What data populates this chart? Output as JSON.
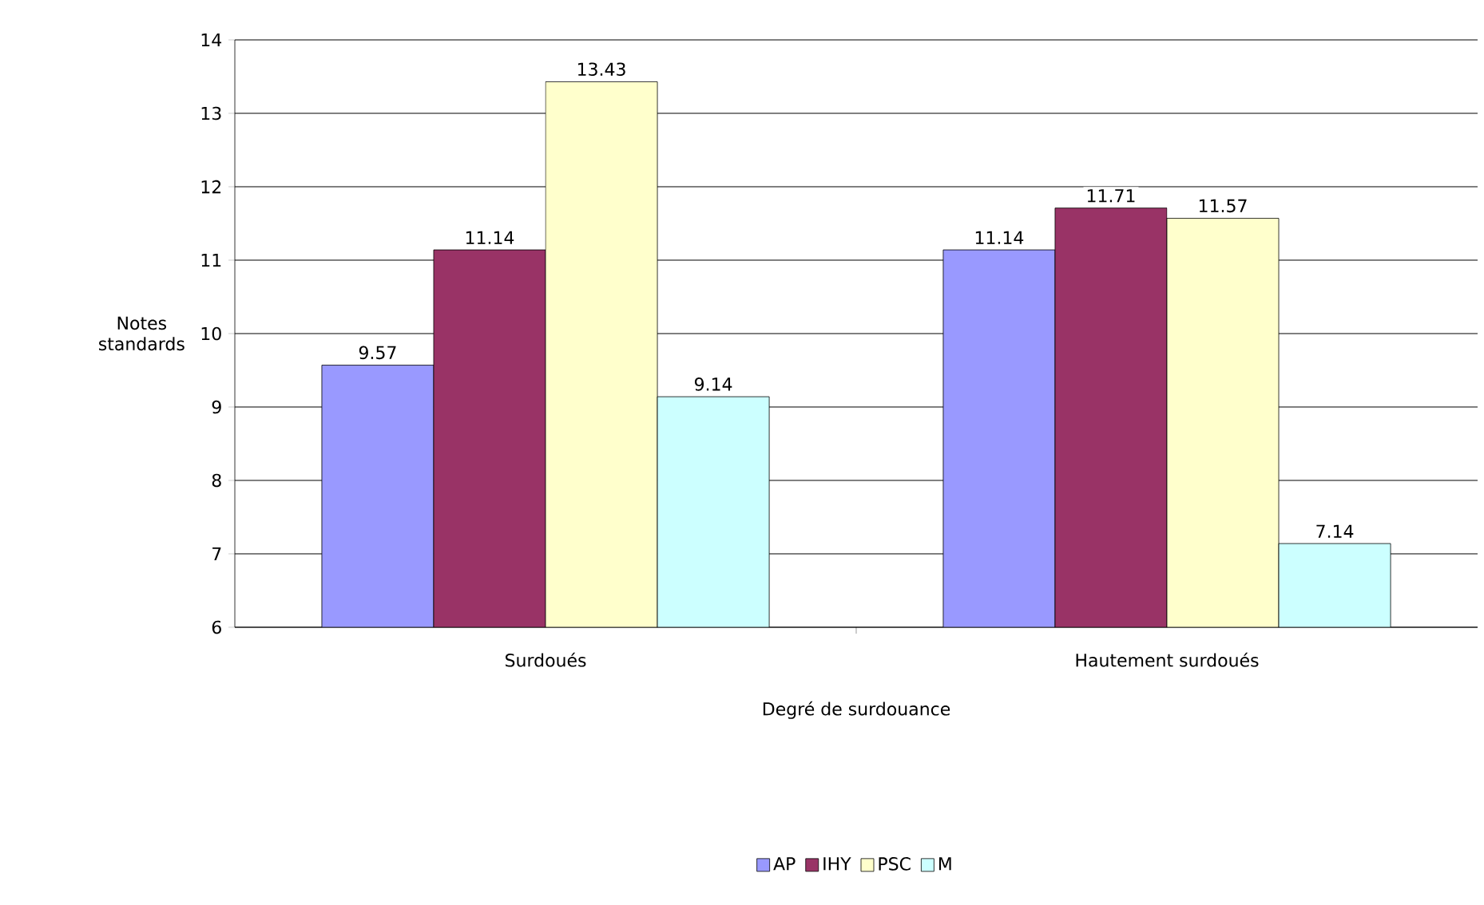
{
  "chart_data": {
    "type": "bar",
    "xlabel": "Degré de surdouance",
    "ylabel": "Notes standards",
    "categories": [
      "Surdoués",
      "Hautement surdoués"
    ],
    "series": [
      {
        "name": "AP",
        "color": "#9999ff",
        "values": [
          9.57,
          11.14
        ]
      },
      {
        "name": "IHY",
        "color": "#993366",
        "values": [
          11.14,
          11.71
        ]
      },
      {
        "name": "PSC",
        "color": "#ffffcc",
        "values": [
          13.43,
          11.57
        ]
      },
      {
        "name": "M",
        "color": "#ccffff",
        "values": [
          9.14,
          7.14
        ]
      }
    ],
    "ylim": [
      6,
      14
    ],
    "yticks": [
      6,
      7,
      8,
      9,
      10,
      11,
      12,
      13,
      14
    ],
    "grid": "y",
    "legend": "bottom",
    "data_labels": true
  }
}
